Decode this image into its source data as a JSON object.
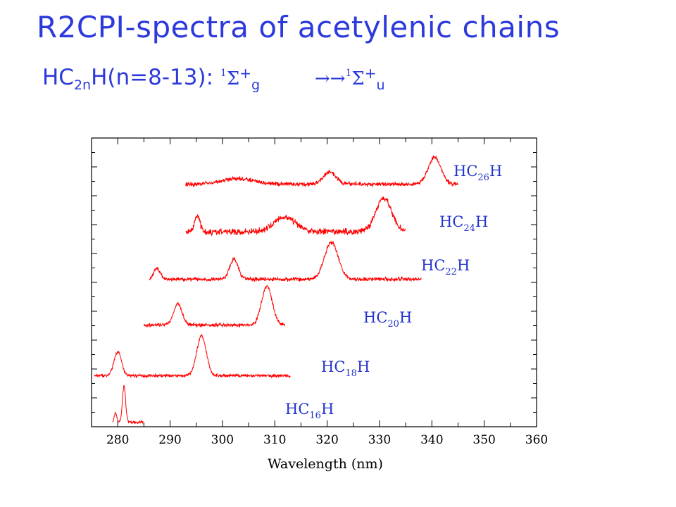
{
  "slide": {
    "title": "R2CPI-spectra of acetylenic chains",
    "subtitle": {
      "prefix": "HC",
      "sub_2n": "2n",
      "middle": "H(n=8-13): ",
      "state1_mult": "1",
      "state1_sym": "Σ",
      "state1_plus": "+",
      "state1_sub": "g",
      "arrow": "→→",
      "state2_mult": "1",
      "state2_sym": "Σ",
      "state2_plus": "+",
      "state2_sub": "u"
    }
  },
  "chart_data": {
    "type": "line",
    "title": "",
    "xlabel": "Wavelength (nm)",
    "ylabel": "",
    "xlim": [
      275,
      360
    ],
    "x_ticks": [
      280,
      290,
      300,
      310,
      320,
      330,
      340,
      350,
      360
    ],
    "y_ticks_shown": false,
    "grid": false,
    "line_color": "#ff0000",
    "label_color": "#2233cc",
    "y_units": "arbitrary (stacked traces, offset vertically)",
    "series": [
      {
        "label_prefix": "HC",
        "label_sub": "16",
        "label_suffix": "H",
        "x_range": [
          279,
          285
        ],
        "peaks": [
          {
            "x": 279.6,
            "height": 0.25,
            "width": 0.25
          },
          {
            "x": 281.2,
            "height": 1.0,
            "width": 0.3
          }
        ],
        "baseline_slope": 0.0,
        "noise": 0.05
      },
      {
        "label_prefix": "HC",
        "label_sub": "18",
        "label_suffix": "H",
        "x_range": [
          275.5,
          313
        ],
        "peaks": [
          {
            "x": 280.0,
            "height": 0.6,
            "width": 0.7
          },
          {
            "x": 296.0,
            "height": 1.0,
            "width": 0.9
          }
        ],
        "baseline_slope": 0.0,
        "noise": 0.05
      },
      {
        "label_prefix": "HC",
        "label_sub": "20",
        "label_suffix": "H",
        "x_range": [
          285,
          312
        ],
        "peaks": [
          {
            "x": 291.5,
            "height": 0.55,
            "width": 0.8
          },
          {
            "x": 308.5,
            "height": 1.0,
            "width": 1.0
          }
        ],
        "baseline_slope": 0.0,
        "noise": 0.06
      },
      {
        "label_prefix": "HC",
        "label_sub": "22",
        "label_suffix": "H",
        "x_range": [
          286,
          338
        ],
        "peaks": [
          {
            "x": 287.5,
            "height": 0.3,
            "width": 0.6
          },
          {
            "x": 302.2,
            "height": 0.55,
            "width": 0.8
          },
          {
            "x": 320.8,
            "height": 1.0,
            "width": 1.3
          }
        ],
        "baseline_slope": 0.0,
        "noise": 0.07
      },
      {
        "label_prefix": "HC",
        "label_sub": "24",
        "label_suffix": "H",
        "x_range": [
          293,
          335
        ],
        "peaks": [
          {
            "x": 295.2,
            "height": 0.5,
            "width": 0.5
          },
          {
            "x": 312.0,
            "height": 0.45,
            "width": 2.0
          },
          {
            "x": 330.8,
            "height": 1.0,
            "width": 1.5
          }
        ],
        "baseline_slope": 0.0,
        "noise": 0.12
      },
      {
        "label_prefix": "HC",
        "label_sub": "26",
        "label_suffix": "H",
        "x_range": [
          293,
          345
        ],
        "peaks": [
          {
            "x": 303.0,
            "height": 0.2,
            "width": 3.0
          },
          {
            "x": 320.5,
            "height": 0.45,
            "width": 1.2
          },
          {
            "x": 340.5,
            "height": 1.0,
            "width": 1.2
          }
        ],
        "baseline_slope": 0.0,
        "noise": 0.1
      }
    ]
  }
}
